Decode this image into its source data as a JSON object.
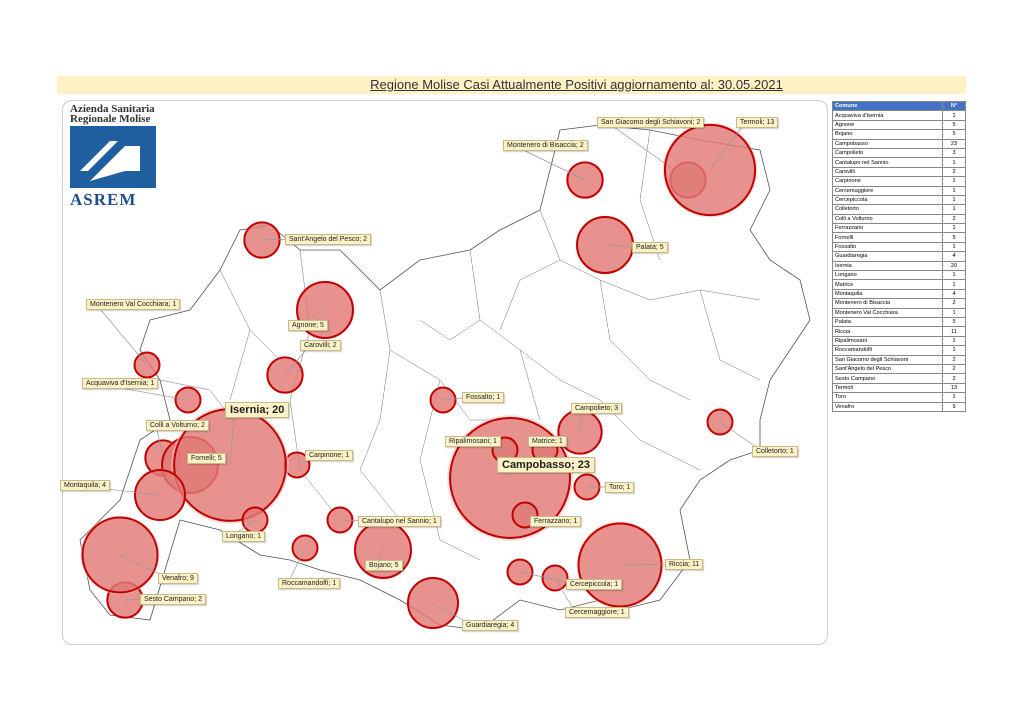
{
  "title": "Regione Molise Casi Attualmente Positivi aggiornamento al: 30.05.2021",
  "logo": {
    "line1": "Azienda Sanitaria",
    "line2": "Regionale Molise",
    "name": "ASREM"
  },
  "colors": {
    "circle_fill": "#d9534f",
    "circle_stroke": "#c00000",
    "label_bg": "#fdf1c6",
    "table_header": "#4472c4",
    "title_bg": "#fdf1c6"
  },
  "table": {
    "headers": [
      "Comune",
      "N°"
    ],
    "rows": [
      [
        "Acquaviva d'Isernia",
        "1"
      ],
      [
        "Agnone",
        "5"
      ],
      [
        "Bojano",
        "5"
      ],
      [
        "Campobasso",
        "23"
      ],
      [
        "Campolieto",
        "3"
      ],
      [
        "Cantalupo nel Sannio",
        "1"
      ],
      [
        "Carovilli",
        "2"
      ],
      [
        "Carpinone",
        "1"
      ],
      [
        "Cercemaggiore",
        "1"
      ],
      [
        "Cercepiccola",
        "1"
      ],
      [
        "Colletorto",
        "1"
      ],
      [
        "Colli a Volturno",
        "2"
      ],
      [
        "Ferrazzano",
        "1"
      ],
      [
        "Fornelli",
        "5"
      ],
      [
        "Fossalto",
        "1"
      ],
      [
        "Guardiaregia",
        "4"
      ],
      [
        "Isernia",
        "20"
      ],
      [
        "Longano",
        "1"
      ],
      [
        "Matrice",
        "1"
      ],
      [
        "Montaquila",
        "4"
      ],
      [
        "Montenero di Bisaccia",
        "2"
      ],
      [
        "Montenero Val Cocchiara",
        "1"
      ],
      [
        "Palata",
        "5"
      ],
      [
        "Riccia",
        "11"
      ],
      [
        "Ripalimosani",
        "1"
      ],
      [
        "Roccamandolfi",
        "1"
      ],
      [
        "San Giacomo degli Schiavoni",
        "2"
      ],
      [
        "Sant'Angelo del Pesco",
        "2"
      ],
      [
        "Sesto Campano",
        "2"
      ],
      [
        "Termoli",
        "13"
      ],
      [
        "Toro",
        "1"
      ],
      [
        "Venafro",
        "9"
      ]
    ]
  },
  "map_labels": [
    "Acquaviva d'Isernia; 1",
    "Agnone; 5",
    "Bojano; 5",
    "Campobasso; 23",
    "Campolieto; 3",
    "Cantalupo nel Sannio; 1",
    "Carovilli; 2",
    "Carpinone; 1",
    "Cercemaggiore; 1",
    "Cercepiccola; 1",
    "Colletorto; 1",
    "Colli a Volturno; 2",
    "Ferrazzano; 1",
    "Fornelli; 5",
    "Fossalto; 1",
    "Guardiaregia; 4",
    "Isernia; 20",
    "Longano; 1",
    "Matrice; 1",
    "Montaquila; 4",
    "Montenero di Bisaccia; 2",
    "Montenero Val Cocchiara; 1",
    "Palata; 5",
    "Riccia; 11",
    "Ripalimosani; 1",
    "Roccamandolfi; 1",
    "San Giacomo degli Schiavoni; 2",
    "Sant'Angelo del Pesco; 2",
    "Sesto Campano; 2",
    "Termoli; 13",
    "Toro; 1",
    "Venafro; 9"
  ]
}
